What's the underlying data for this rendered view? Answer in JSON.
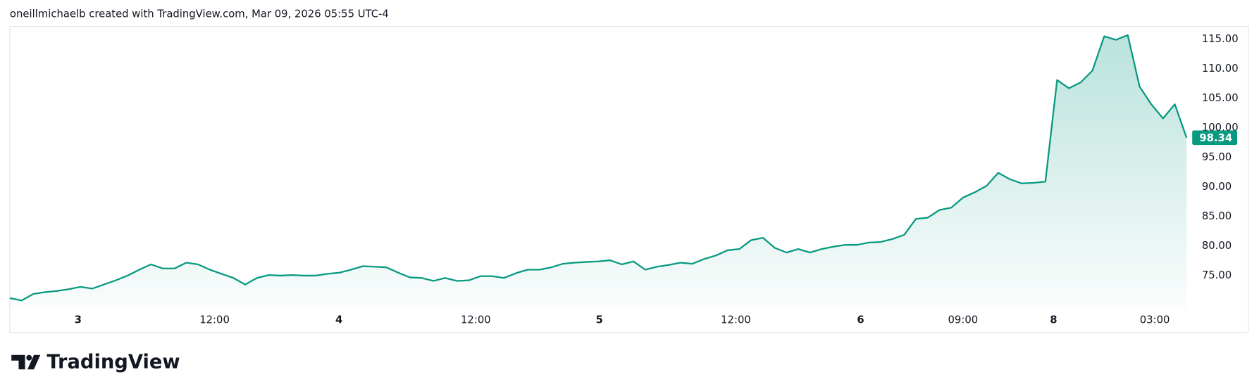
{
  "header": "oneillmichaelb created with TradingView.com, Mar 09, 2026 05:55 UTC-4",
  "logo": "TradingView",
  "chart_data": {
    "type": "area",
    "color": "#089981",
    "x": [
      0,
      1,
      2,
      3,
      4,
      5,
      6,
      7,
      8,
      9,
      10,
      11,
      12,
      13,
      14,
      15,
      16,
      17,
      18,
      19,
      20,
      21,
      22,
      23,
      24,
      25,
      26,
      27,
      28,
      29,
      30,
      31,
      32,
      33,
      34,
      35,
      36,
      37,
      38,
      39,
      40,
      41,
      42,
      43,
      44,
      45,
      46,
      47,
      48,
      49,
      50,
      51,
      52,
      53,
      54,
      55,
      56,
      57,
      58,
      59,
      60,
      61,
      62,
      63,
      64,
      65,
      66,
      67,
      68,
      69,
      70,
      71,
      72,
      73,
      74,
      75,
      76,
      77,
      78,
      79,
      80,
      81,
      82,
      83,
      84,
      85,
      86,
      87,
      88,
      89,
      90,
      91,
      92,
      93,
      94,
      95,
      96,
      97,
      98,
      99,
      100
    ],
    "values": [
      71.2,
      70.8,
      71.9,
      72.2,
      72.4,
      72.7,
      73.1,
      72.8,
      73.5,
      74.2,
      75.0,
      76.0,
      76.9,
      76.2,
      76.2,
      77.2,
      76.9,
      76.0,
      75.3,
      74.6,
      73.5,
      74.6,
      75.1,
      75.0,
      75.1,
      75.0,
      75.0,
      75.3,
      75.5,
      76.0,
      76.6,
      76.5,
      76.4,
      75.5,
      74.7,
      74.6,
      74.1,
      74.6,
      74.1,
      74.2,
      74.9,
      74.9,
      74.6,
      75.4,
      76.0,
      76.0,
      76.4,
      77.0,
      77.2,
      77.3,
      77.4,
      77.6,
      76.9,
      77.4,
      76.0,
      76.5,
      76.8,
      77.2,
      77.0,
      77.8,
      78.4,
      79.3,
      79.5,
      81.0,
      81.4,
      79.7,
      78.9,
      79.5,
      78.9,
      79.5,
      79.9,
      80.2,
      80.2,
      80.6,
      80.7,
      81.2,
      81.9,
      84.6,
      84.8,
      86.1,
      86.5,
      88.2,
      89.1,
      90.2,
      92.4,
      91.3,
      90.6,
      90.7,
      90.9,
      108.1,
      106.7,
      107.7,
      109.7,
      115.5,
      114.9,
      115.7,
      107.0,
      104.0,
      101.6,
      104.0,
      98.34
    ],
    "last_price": 98.34,
    "xlim": [
      0,
      100
    ],
    "xticks": [
      {
        "value": 5.8,
        "label": "3"
      },
      {
        "value": 17.4,
        "label": "12:00"
      },
      {
        "value": 27.97,
        "label": "4"
      },
      {
        "value": 39.6,
        "label": "12:00"
      },
      {
        "value": 50.1,
        "label": "5"
      },
      {
        "value": 61.7,
        "label": "12:00"
      },
      {
        "value": 72.3,
        "label": "6"
      },
      {
        "value": 81.0,
        "label": "09:00"
      },
      {
        "value": 88.7,
        "label": "8"
      },
      {
        "value": 97.3,
        "label": "03:00"
      }
    ],
    "ylim": [
      69.44,
      117.17
    ],
    "yticks": [
      {
        "value": 75,
        "label": "75.00"
      },
      {
        "value": 80,
        "label": "80.00"
      },
      {
        "value": 85,
        "label": "85.00"
      },
      {
        "value": 90,
        "label": "90.00"
      },
      {
        "value": 95,
        "label": "95.00"
      },
      {
        "value": 100,
        "label": "100.00"
      },
      {
        "value": 105,
        "label": "105.00"
      },
      {
        "value": 110,
        "label": "110.00"
      },
      {
        "value": 115,
        "label": "115.00"
      }
    ]
  }
}
